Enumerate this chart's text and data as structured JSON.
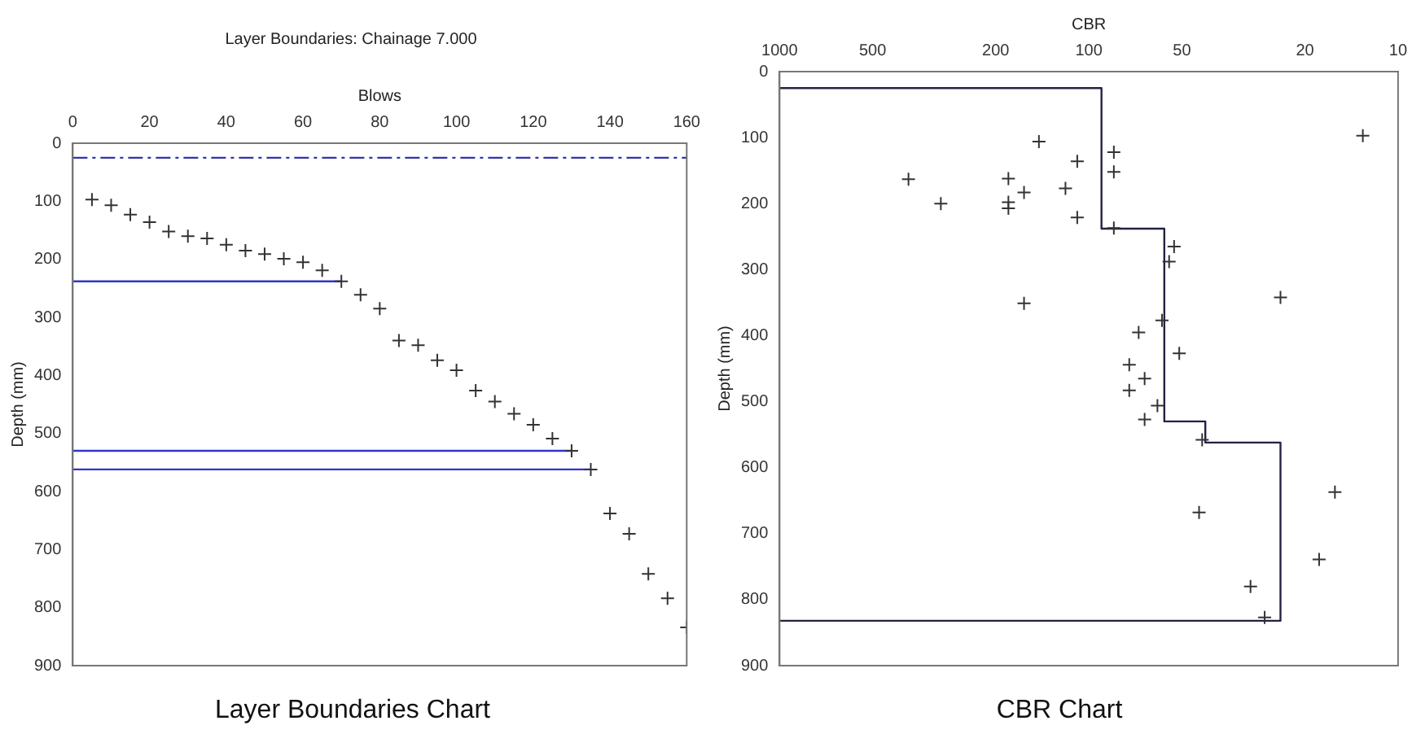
{
  "chart_data": [
    {
      "type": "scatter",
      "title": "Layer Boundaries: Chainage 7.000",
      "xlabel": "Blows",
      "ylabel": "Depth (mm)",
      "annotations": [
        "Layer Boundaries Chart"
      ],
      "xlim": [
        0,
        160
      ],
      "xticks": [
        0,
        20,
        40,
        60,
        80,
        100,
        120,
        140,
        160
      ],
      "ylim": [
        900,
        0
      ],
      "yticks": [
        0,
        100,
        200,
        300,
        400,
        500,
        600,
        700,
        800,
        900
      ],
      "grid": false,
      "legend": false,
      "series": [
        {
          "marker": "cross",
          "color": "#333333",
          "x": [
            5,
            10,
            15,
            20,
            25,
            30,
            35,
            40,
            45,
            50,
            55,
            60,
            65,
            70,
            75,
            80,
            85,
            90,
            95,
            100,
            105,
            110,
            115,
            120,
            125,
            130,
            135,
            140,
            145,
            150,
            155,
            160
          ],
          "values": [
            97,
            107,
            123,
            136,
            152,
            160,
            164,
            175,
            185,
            191,
            199,
            205,
            219,
            238,
            261,
            285,
            340,
            348,
            374,
            391,
            426,
            445,
            466,
            485,
            509,
            530,
            562,
            638,
            673,
            742,
            784,
            834
          ]
        },
        {
          "type": "line",
          "color": "#3333cc",
          "x": [
            0,
            70
          ],
          "values": [
            238,
            238
          ]
        },
        {
          "type": "line",
          "color": "#3333cc",
          "x": [
            0,
            130
          ],
          "values": [
            530,
            530
          ]
        },
        {
          "type": "line",
          "color": "#3333cc",
          "x": [
            0,
            135
          ],
          "values": [
            562,
            562
          ]
        }
      ],
      "ref_lines": [
        {
          "axis": "y",
          "value": 25,
          "color": "#3333aa",
          "line_style": "dashed"
        }
      ]
    },
    {
      "type": "scatter",
      "xlabel": "CBR",
      "ylabel": "Depth (mm)",
      "annotations": [
        "CBR Chart"
      ],
      "log": "x",
      "xlim": [
        1000,
        10
      ],
      "xticks": [
        1000,
        500,
        200,
        100,
        50,
        20,
        10
      ],
      "ylim": [
        900,
        0
      ],
      "yticks": [
        0,
        100,
        200,
        300,
        400,
        500,
        600,
        700,
        800,
        900
      ],
      "grid": false,
      "legend": false,
      "series": [
        {
          "marker": "cross",
          "color": "#333333",
          "x": [
            13,
            145,
            83,
            109,
            83,
            383,
            182,
            119,
            162,
            182,
            182,
            301,
            109,
            83,
            53,
            55,
            24,
            162,
            58,
            69,
            51,
            74,
            66,
            74,
            60,
            66,
            43,
            16,
            44,
            18,
            30,
            27
          ],
          "values": [
            97,
            106,
            122,
            136,
            152,
            163,
            162,
            177,
            183,
            198,
            207,
            200,
            221,
            237,
            265,
            288,
            342,
            351,
            377,
            395,
            427,
            444,
            465,
            483,
            506,
            527,
            558,
            637,
            668,
            739,
            780,
            827
          ]
        },
        {
          "type": "line",
          "color": "#222244",
          "x": [
            1000,
            91,
            91,
            57,
            57,
            42,
            42,
            24,
            24,
            1000
          ],
          "values": [
            25,
            25,
            238,
            238,
            530,
            530,
            562,
            562,
            832,
            832
          ]
        }
      ]
    }
  ]
}
